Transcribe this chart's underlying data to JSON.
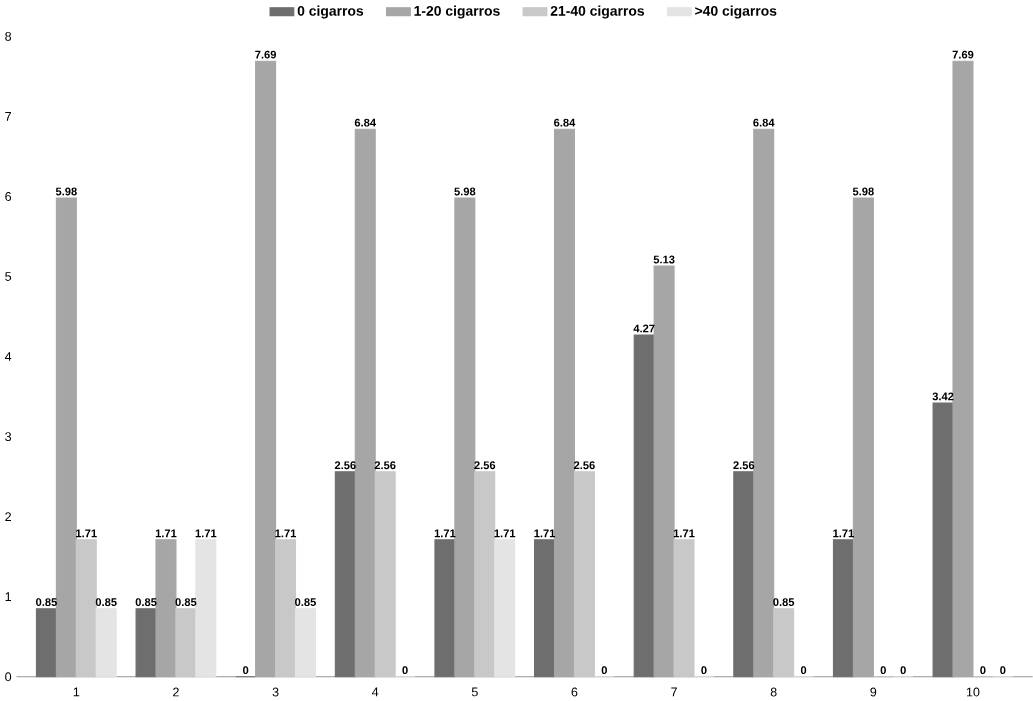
{
  "chart_data": {
    "type": "bar",
    "categories": [
      "1",
      "2",
      "3",
      "4",
      "5",
      "6",
      "7",
      "8",
      "9",
      "10"
    ],
    "series": [
      {
        "name": "0 cigarros",
        "color": "#6e6e6e",
        "values": [
          0.85,
          0.85,
          0,
          2.56,
          1.71,
          1.71,
          4.27,
          2.56,
          1.71,
          3.42
        ]
      },
      {
        "name": "1-20 cigarros",
        "color": "#a6a6a6",
        "values": [
          5.98,
          1.71,
          7.69,
          6.84,
          5.98,
          6.84,
          5.13,
          6.84,
          5.98,
          7.69
        ]
      },
      {
        "name": "21-40 cigarros",
        "color": "#c8c8c8",
        "values": [
          1.71,
          0.85,
          1.71,
          2.56,
          2.56,
          2.56,
          1.71,
          0.85,
          0,
          0
        ]
      },
      {
        "name": ">40 cigarros",
        "color": "#e4e4e4",
        "values": [
          0.85,
          1.71,
          0.85,
          0,
          1.71,
          0,
          0,
          0,
          0,
          0
        ]
      }
    ],
    "ylim": [
      0,
      8
    ],
    "yticks": [
      0,
      1,
      2,
      3,
      4,
      5,
      6,
      7,
      8
    ],
    "data_labels": true,
    "legend": "top",
    "grid": false
  }
}
